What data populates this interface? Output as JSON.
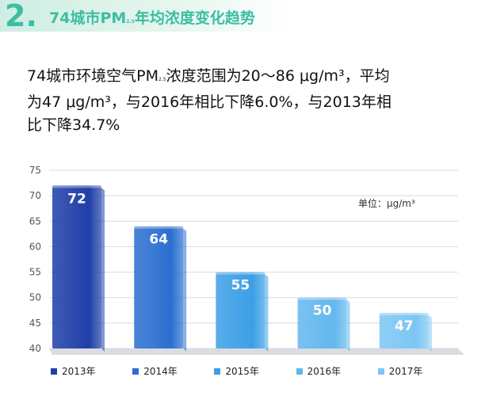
{
  "header": {
    "number": "2.",
    "title_prefix": "74城市PM",
    "title_sub": "2.5",
    "title_suffix": "年均浓度变化趋势"
  },
  "description": {
    "line1_prefix": "74城市环境空气PM",
    "line1_sub": "2.5",
    "line1_suffix": "浓度范围为20～86 μg/m³，平均",
    "line2": "为47 μg/m³，与2016年相比下降6.0%，与2013年相",
    "line3": "比下降34.7%"
  },
  "unit": "单位：μg/m³",
  "colors": [
    "#1f3fa8",
    "#2c6fd0",
    "#3c9fe6",
    "#63b7ee",
    "#7cc6f4"
  ],
  "chart_data": {
    "type": "bar",
    "categories": [
      "2013年",
      "2014年",
      "2015年",
      "2016年",
      "2017年"
    ],
    "values": [
      72,
      64,
      55,
      50,
      47
    ],
    "labels": [
      "72",
      "64",
      "55",
      "50",
      "47"
    ],
    "ylim": [
      40,
      75
    ],
    "yticks": [
      40,
      45,
      50,
      55,
      60,
      65,
      70,
      75
    ],
    "grid": true,
    "legend": "bottom",
    "unit": "单位：μg/m³"
  }
}
